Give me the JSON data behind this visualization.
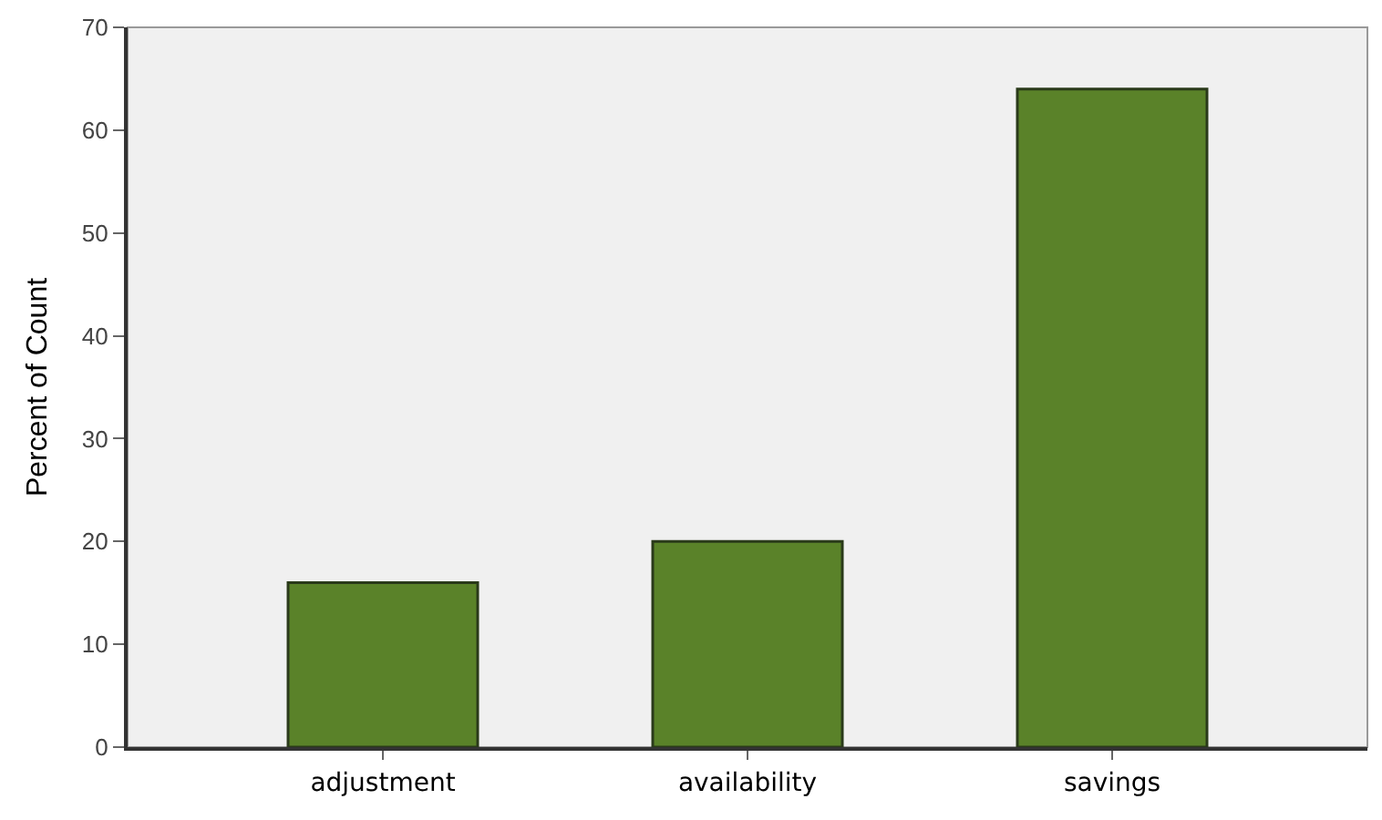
{
  "chart_data": {
    "type": "bar",
    "ylabel": "Percent of Count",
    "categories": [
      "adjustment",
      "availability",
      "savings"
    ],
    "values": [
      16,
      20,
      64
    ],
    "color": "#5a8229",
    "ylim": [
      0,
      70
    ],
    "yticks": [
      0,
      10,
      20,
      30,
      40,
      50,
      60,
      70
    ],
    "grid": false,
    "legend": false
  }
}
